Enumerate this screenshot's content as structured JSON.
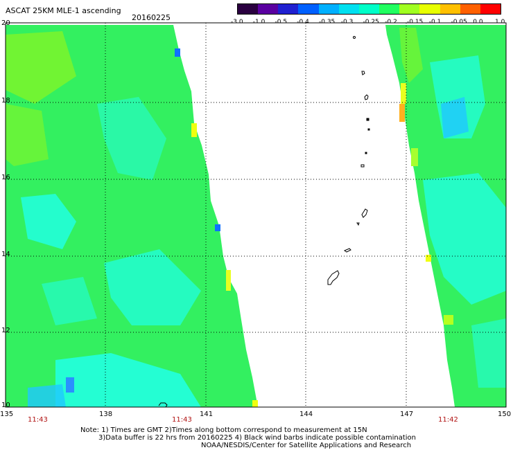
{
  "header": {
    "title": "ASCAT 25KM MLE-1 ascending",
    "date": "20160225"
  },
  "colorbar": {
    "tick_labels": [
      "-3.0",
      "-1.0",
      "-0.5",
      "-0.4",
      "-0.35",
      "-0.3",
      "-0.25",
      "-0.2",
      "-0.15",
      "-0.1",
      "-0.05",
      "0.0",
      "1.0"
    ],
    "colors": [
      "#2a0040",
      "#5a00a0",
      "#2020d0",
      "#0060ff",
      "#00b0ff",
      "#00e0f0",
      "#00ffc8",
      "#20ff60",
      "#a0ff20",
      "#e8ff00",
      "#ffc000",
      "#ff6000",
      "#ff0000"
    ]
  },
  "map": {
    "lat_labels": [
      "20",
      "18",
      "16",
      "14",
      "12",
      "10"
    ],
    "lon_labels": [
      "135",
      "138",
      "141",
      "144",
      "147",
      "150"
    ],
    "lon_range": [
      135,
      150
    ],
    "lat_range": [
      10,
      20
    ],
    "pass_times": [
      "11:43",
      "11:43",
      "11:42"
    ],
    "swath_colors": {
      "base": "#33f060",
      "cyan": "#22ffe0",
      "light": "#7cf52c",
      "blue": "#1070ff",
      "yellow": "#f0ff10",
      "orange": "#ffb020"
    }
  },
  "notes": {
    "line1": "Note: 1) Times are GMT 2)Times along bottom correspond to measurement at 15N",
    "line2": "3)Data buffer is 22 hrs from 20160225 4) Black wind barbs indicate possible contamination",
    "line3": "NOAA/NESDIS/Center for Satellite Applications and Research"
  }
}
